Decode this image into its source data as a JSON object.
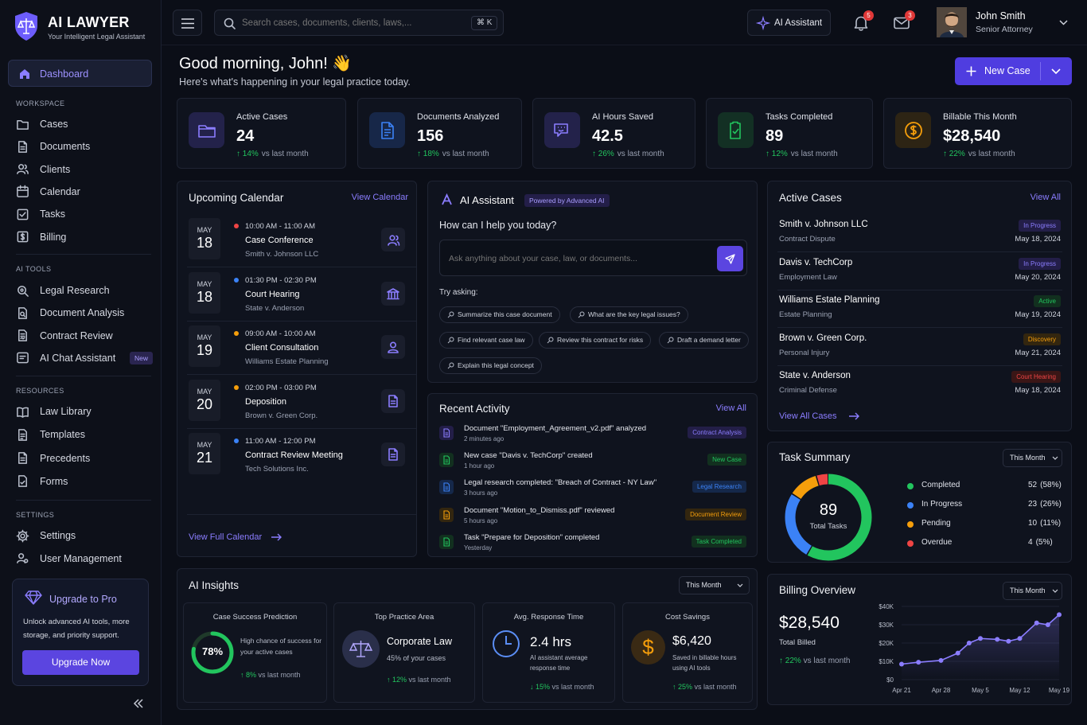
{
  "brand": {
    "name": "AI LAWYER",
    "tagline": "Your Intelligent Legal Assistant"
  },
  "sidebar": {
    "dashboard": "Dashboard",
    "workspace_title": "WORKSPACE",
    "workspace": [
      {
        "label": "Cases",
        "icon": "folder-icon"
      },
      {
        "label": "Documents",
        "icon": "document-icon"
      },
      {
        "label": "Clients",
        "icon": "users-icon"
      },
      {
        "label": "Calendar",
        "icon": "calendar-icon"
      },
      {
        "label": "Tasks",
        "icon": "checkbox-icon"
      },
      {
        "label": "Billing",
        "icon": "dollar-icon"
      }
    ],
    "aitools_title": "AI TOOLS",
    "aitools": [
      {
        "label": "Legal Research",
        "icon": "search-icon"
      },
      {
        "label": "Document Analysis",
        "icon": "doc-search-icon"
      },
      {
        "label": "Contract Review",
        "icon": "contract-icon"
      },
      {
        "label": "AI Chat Assistant",
        "icon": "chat-icon",
        "badge": "New"
      }
    ],
    "resources_title": "RESOURCES",
    "resources": [
      {
        "label": "Law Library",
        "icon": "book-icon"
      },
      {
        "label": "Templates",
        "icon": "template-icon"
      },
      {
        "label": "Precedents",
        "icon": "precedent-icon"
      },
      {
        "label": "Forms",
        "icon": "form-icon"
      }
    ],
    "settings_title": "SETTINGS",
    "settings": [
      {
        "label": "Settings",
        "icon": "gear-icon"
      },
      {
        "label": "User Management",
        "icon": "user-management-icon"
      }
    ],
    "upgrade": {
      "title": "Upgrade to Pro",
      "text": "Unlock advanced AI tools, more storage, and priority support.",
      "button": "Upgrade Now"
    }
  },
  "header": {
    "search_placeholder": "Search cases, documents, clients, laws,...",
    "shortcut": "⌘ K",
    "ai_button": "AI Assistant",
    "notif_count": "5",
    "mail_count": "3",
    "user_name": "John Smith",
    "user_role": "Senior Attorney"
  },
  "greeting": {
    "title": "Good morning, John! 👋",
    "subtitle": "Here's what's happening in your legal practice today.",
    "new_case": "New Case"
  },
  "stats": [
    {
      "label": "Active Cases",
      "value": "24",
      "change": "14%",
      "suffix": "vs last month",
      "color": "#8b7dff"
    },
    {
      "label": "Documents Analyzed",
      "value": "156",
      "change": "18%",
      "suffix": "vs last month",
      "color": "#3b82f6"
    },
    {
      "label": "AI Hours Saved",
      "value": "42.5",
      "change": "26%",
      "suffix": "vs last month",
      "color": "#8b7dff"
    },
    {
      "label": "Tasks Completed",
      "value": "89",
      "change": "12%",
      "suffix": "vs last month",
      "color": "#22c55e"
    },
    {
      "label": "Billable This Month",
      "value": "$28,540",
      "change": "22%",
      "suffix": "vs last month",
      "color": "#f59e0b"
    }
  ],
  "calendar": {
    "title": "Upcoming Calendar",
    "link": "View Calendar",
    "footer": "View Full Calendar",
    "events": [
      {
        "month": "MAY",
        "day": "18",
        "time": "10:00 AM - 11:00 AM",
        "title": "Case Conference",
        "sub": "Smith v. Johnson LLC",
        "dot": "#ef4444",
        "icon": "people-icon"
      },
      {
        "month": "MAY",
        "day": "18",
        "time": "01:30 PM - 02:30 PM",
        "title": "Court Hearing",
        "sub": "State v. Anderson",
        "dot": "#3b82f6",
        "icon": "courthouse-icon"
      },
      {
        "month": "MAY",
        "day": "19",
        "time": "09:00 AM - 10:00 AM",
        "title": "Client Consultation",
        "sub": "Williams Estate Planning",
        "dot": "#f59e0b",
        "icon": "person-icon"
      },
      {
        "month": "MAY",
        "day": "20",
        "time": "02:00 PM - 03:00 PM",
        "title": "Deposition",
        "sub": "Brown v. Green Corp.",
        "dot": "#f59e0b",
        "icon": "document-icon"
      },
      {
        "month": "MAY",
        "day": "21",
        "time": "11:00 AM - 12:00 PM",
        "title": "Contract Review Meeting",
        "sub": "Tech Solutions Inc.",
        "dot": "#3b82f6",
        "icon": "document-icon"
      }
    ]
  },
  "assistant": {
    "title": "AI Assistant",
    "badge": "Powered by Advanced AI",
    "question": "How can I help you today?",
    "placeholder": "Ask anything about your case, law, or documents...",
    "try": "Try asking:",
    "chips": [
      "Summarize this case document",
      "What are the key legal issues?",
      "Find relevant case law",
      "Review this contract for risks",
      "Draft a demand letter",
      "Explain this legal concept"
    ]
  },
  "activity": {
    "title": "Recent Activity",
    "link": "View All",
    "items": [
      {
        "text": "Document \"Employment_Agreement_v2.pdf\" analyzed",
        "time": "2 minutes ago",
        "tag": "Contract Analysis",
        "color": "#8b7dff"
      },
      {
        "text": "New case \"Davis v. TechCorp\" created",
        "time": "1 hour ago",
        "tag": "New Case",
        "color": "#22c55e"
      },
      {
        "text": "Legal research completed: \"Breach of Contract - NY Law\"",
        "time": "3 hours ago",
        "tag": "Legal Research",
        "color": "#3b82f6"
      },
      {
        "text": "Document \"Motion_to_Dismiss.pdf\" reviewed",
        "time": "5 hours ago",
        "tag": "Document Review",
        "color": "#f59e0b"
      },
      {
        "text": "Task \"Prepare for Deposition\" completed",
        "time": "Yesterday",
        "tag": "Task Completed",
        "color": "#22c55e"
      }
    ]
  },
  "active_cases": {
    "title": "Active Cases",
    "link": "View All",
    "footer": "View All Cases",
    "items": [
      {
        "name": "Smith v. Johnson LLC",
        "type": "Contract Dispute",
        "status": "In Progress",
        "date": "May 18, 2024",
        "color": "#8b7dff"
      },
      {
        "name": "Davis v. TechCorp",
        "type": "Employment Law",
        "status": "In Progress",
        "date": "May 20, 2024",
        "color": "#8b7dff"
      },
      {
        "name": "Williams Estate Planning",
        "type": "Estate Planning",
        "status": "Active",
        "date": "May 19, 2024",
        "color": "#22c55e"
      },
      {
        "name": "Brown v. Green Corp.",
        "type": "Personal Injury",
        "status": "Discovery",
        "date": "May 21, 2024",
        "color": "#f59e0b"
      },
      {
        "name": "State v. Anderson",
        "type": "Criminal Defense",
        "status": "Court Hearing",
        "date": "May 18, 2024",
        "color": "#ef4444"
      }
    ]
  },
  "task_summary": {
    "title": "Task Summary",
    "period": "This Month",
    "total": "89",
    "total_label": "Total Tasks",
    "items": [
      {
        "name": "Completed",
        "count": "52",
        "pct": "(58%)",
        "value": 52,
        "color": "#22c55e"
      },
      {
        "name": "In Progress",
        "count": "23",
        "pct": "(26%)",
        "value": 23,
        "color": "#3b82f6"
      },
      {
        "name": "Pending",
        "count": "10",
        "pct": "(11%)",
        "value": 10,
        "color": "#f59e0b"
      },
      {
        "name": "Overdue",
        "count": "4",
        "pct": "(5%)",
        "value": 4,
        "color": "#ef4444"
      }
    ]
  },
  "insights": {
    "title": "AI Insights",
    "period": "This Month",
    "success": {
      "title": "Case Success Prediction",
      "value": "78%",
      "percent": 78,
      "text": "High chance of success for your active cases",
      "change": "8%",
      "suffix": "vs last month"
    },
    "practice": {
      "title": "Top Practice Area",
      "value": "Corporate Law",
      "sub": "45% of your cases",
      "change": "12%",
      "suffix": "vs last month"
    },
    "response": {
      "title": "Avg. Response Time",
      "value": "2.4 hrs",
      "sub": "AI assistant average response time",
      "change": "15%",
      "suffix": "vs last month"
    },
    "savings": {
      "title": "Cost Savings",
      "value": "$6,420",
      "sub": "Saved in billable hours using AI tools",
      "change": "25%",
      "suffix": "vs last month"
    }
  },
  "billing": {
    "title": "Billing Overview",
    "period": "This Month",
    "total": "$28,540",
    "total_label": "Total Billed",
    "change": "22%",
    "suffix": "vs last month"
  },
  "chart_data": {
    "type": "line",
    "title": "",
    "x": [
      "Apr 21",
      "Apr 28",
      "May 5",
      "May 12",
      "May 19"
    ],
    "x_ticks": [
      "Apr 21",
      "Apr 28",
      "May 5",
      "May 12",
      "May 19"
    ],
    "y_ticks": [
      "$0",
      "$10K",
      "$20K",
      "$30K",
      "$40K"
    ],
    "ylim": [
      0,
      40000
    ],
    "points": [
      {
        "x": "Apr 21",
        "y": 8500
      },
      {
        "x": "Apr 24",
        "y": 9500
      },
      {
        "x": "Apr 28",
        "y": 10500
      },
      {
        "x": "May 1",
        "y": 14500
      },
      {
        "x": "May 3",
        "y": 20000
      },
      {
        "x": "May 5",
        "y": 22500
      },
      {
        "x": "May 8",
        "y": 22000
      },
      {
        "x": "May 10",
        "y": 21000
      },
      {
        "x": "May 12",
        "y": 22500
      },
      {
        "x": "May 15",
        "y": 31000
      },
      {
        "x": "May 17",
        "y": 30000
      },
      {
        "x": "May 19",
        "y": 35500
      }
    ],
    "grid": true,
    "legend": "none",
    "color": "#8b7dff"
  }
}
